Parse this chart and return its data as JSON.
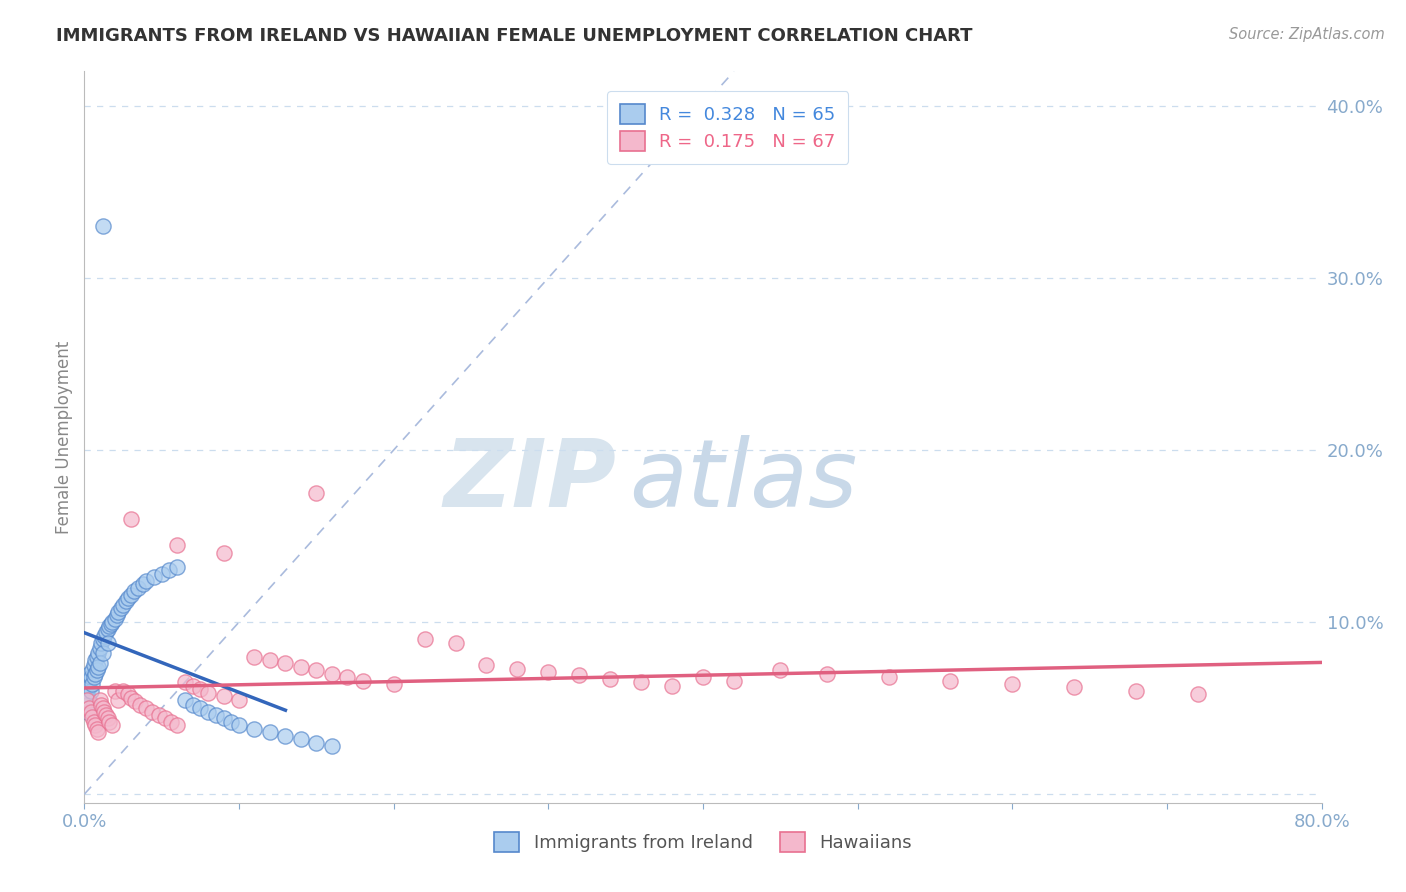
{
  "title": "IMMIGRANTS FROM IRELAND VS HAWAIIAN FEMALE UNEMPLOYMENT CORRELATION CHART",
  "source_text": "Source: ZipAtlas.com",
  "ylabel": "Female Unemployment",
  "xlim": [
    0,
    0.8
  ],
  "ylim": [
    -0.005,
    0.42
  ],
  "xticks": [
    0.0,
    0.1,
    0.2,
    0.3,
    0.4,
    0.5,
    0.6,
    0.7,
    0.8
  ],
  "xticklabels": [
    "0.0%",
    "",
    "",
    "",
    "",
    "",
    "",
    "",
    "80.0%"
  ],
  "yticks_right": [
    0.0,
    0.1,
    0.2,
    0.3,
    0.4
  ],
  "yticklabels_right": [
    "",
    "10.0%",
    "20.0%",
    "30.0%",
    "40.0%"
  ],
  "legend_label1": "Immigrants from Ireland",
  "legend_label2": "Hawaiians",
  "color_ireland": "#aaccee",
  "color_hawaii": "#f4b8cc",
  "color_ireland_edge": "#5588cc",
  "color_hawaii_edge": "#e87090",
  "color_ireland_line": "#3366bb",
  "color_hawaii_line": "#e06080",
  "color_ireland_text": "#4488dd",
  "color_hawaii_text": "#ee6688",
  "color_axis_tick": "#88aacc",
  "color_grid": "#ccddee",
  "color_diag": "#aabbdd",
  "watermark_color": "#dde8f0",
  "background_color": "#ffffff",
  "ireland_x": [
    0.001,
    0.001,
    0.001,
    0.002,
    0.002,
    0.002,
    0.002,
    0.003,
    0.003,
    0.003,
    0.004,
    0.004,
    0.005,
    0.005,
    0.006,
    0.006,
    0.007,
    0.007,
    0.008,
    0.008,
    0.009,
    0.009,
    0.01,
    0.01,
    0.011,
    0.012,
    0.012,
    0.013,
    0.014,
    0.015,
    0.015,
    0.016,
    0.017,
    0.018,
    0.02,
    0.021,
    0.022,
    0.024,
    0.025,
    0.027,
    0.028,
    0.03,
    0.032,
    0.035,
    0.038,
    0.04,
    0.045,
    0.05,
    0.055,
    0.06,
    0.065,
    0.07,
    0.075,
    0.08,
    0.085,
    0.09,
    0.095,
    0.1,
    0.11,
    0.12,
    0.13,
    0.14,
    0.15,
    0.16,
    0.012
  ],
  "ireland_y": [
    0.06,
    0.055,
    0.05,
    0.065,
    0.058,
    0.052,
    0.048,
    0.07,
    0.062,
    0.055,
    0.068,
    0.06,
    0.072,
    0.064,
    0.075,
    0.068,
    0.078,
    0.07,
    0.08,
    0.072,
    0.082,
    0.074,
    0.085,
    0.076,
    0.088,
    0.09,
    0.082,
    0.092,
    0.094,
    0.096,
    0.088,
    0.098,
    0.099,
    0.1,
    0.102,
    0.104,
    0.106,
    0.108,
    0.11,
    0.112,
    0.114,
    0.116,
    0.118,
    0.12,
    0.122,
    0.124,
    0.126,
    0.128,
    0.13,
    0.132,
    0.055,
    0.052,
    0.05,
    0.048,
    0.046,
    0.044,
    0.042,
    0.04,
    0.038,
    0.036,
    0.034,
    0.032,
    0.03,
    0.028,
    0.33
  ],
  "hawaii_x": [
    0.002,
    0.003,
    0.004,
    0.005,
    0.006,
    0.007,
    0.008,
    0.009,
    0.01,
    0.011,
    0.012,
    0.013,
    0.014,
    0.015,
    0.016,
    0.018,
    0.02,
    0.022,
    0.025,
    0.028,
    0.03,
    0.033,
    0.036,
    0.04,
    0.044,
    0.048,
    0.052,
    0.056,
    0.06,
    0.065,
    0.07,
    0.075,
    0.08,
    0.09,
    0.1,
    0.11,
    0.12,
    0.13,
    0.14,
    0.15,
    0.16,
    0.17,
    0.18,
    0.2,
    0.22,
    0.24,
    0.26,
    0.28,
    0.3,
    0.32,
    0.34,
    0.36,
    0.38,
    0.4,
    0.42,
    0.45,
    0.48,
    0.52,
    0.56,
    0.6,
    0.64,
    0.68,
    0.72,
    0.03,
    0.06,
    0.09,
    0.15
  ],
  "hawaii_y": [
    0.055,
    0.05,
    0.048,
    0.045,
    0.042,
    0.04,
    0.038,
    0.036,
    0.055,
    0.052,
    0.05,
    0.048,
    0.046,
    0.044,
    0.042,
    0.04,
    0.06,
    0.055,
    0.06,
    0.058,
    0.056,
    0.054,
    0.052,
    0.05,
    0.048,
    0.046,
    0.044,
    0.042,
    0.04,
    0.065,
    0.063,
    0.061,
    0.059,
    0.057,
    0.055,
    0.08,
    0.078,
    0.076,
    0.074,
    0.072,
    0.07,
    0.068,
    0.066,
    0.064,
    0.09,
    0.088,
    0.075,
    0.073,
    0.071,
    0.069,
    0.067,
    0.065,
    0.063,
    0.068,
    0.066,
    0.072,
    0.07,
    0.068,
    0.066,
    0.064,
    0.062,
    0.06,
    0.058,
    0.16,
    0.145,
    0.14,
    0.175
  ]
}
